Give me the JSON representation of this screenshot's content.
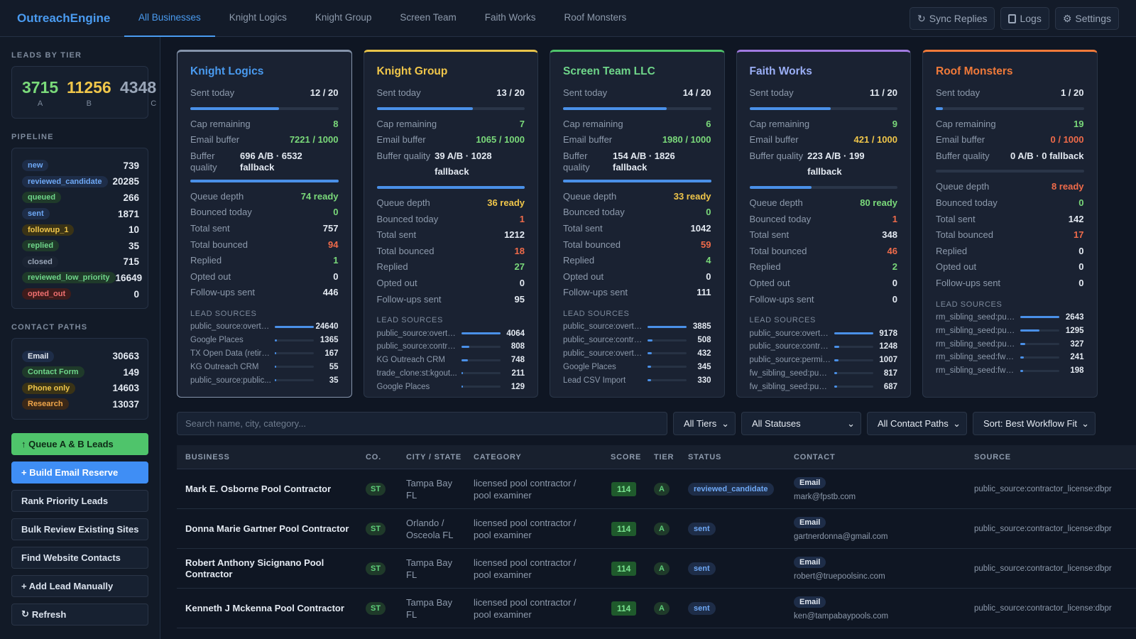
{
  "app": {
    "brand": "OutreachEngine",
    "tabs": [
      "All Businesses",
      "Knight Logics",
      "Knight Group",
      "Screen Team",
      "Faith Works",
      "Roof Monsters"
    ],
    "actions": {
      "sync": "Sync Replies",
      "logs": "Logs",
      "settings": "Settings"
    }
  },
  "sidebar": {
    "tiers_heading": "LEADS BY TIER",
    "tiers": [
      {
        "value": "3715",
        "label": "A",
        "color": "#7ad97a"
      },
      {
        "value": "11256",
        "label": "B",
        "color": "#f0c64a"
      },
      {
        "value": "4348",
        "label": "C",
        "color": "#9aa6b8"
      }
    ],
    "pipeline_heading": "PIPELINE",
    "pipeline": [
      {
        "label": "new",
        "value": "739",
        "bg": "#1e2d48",
        "fg": "#6ea8f5"
      },
      {
        "label": "reviewed_candidate",
        "value": "20285",
        "bg": "#1e2d48",
        "fg": "#6ea8f5"
      },
      {
        "label": "queued",
        "value": "266",
        "bg": "#1f3a2a",
        "fg": "#6fd68a"
      },
      {
        "label": "sent",
        "value": "1871",
        "bg": "#1e2d48",
        "fg": "#6ea8f5"
      },
      {
        "label": "followup_1",
        "value": "10",
        "bg": "#3a3316",
        "fg": "#f0c64a"
      },
      {
        "label": "replied",
        "value": "35",
        "bg": "#1f3a2a",
        "fg": "#6fd68a"
      },
      {
        "label": "closed",
        "value": "715",
        "bg": "#1b2433",
        "fg": "#9aa6b8"
      },
      {
        "label": "reviewed_low_priority",
        "value": "16649",
        "bg": "#1f3a2a",
        "fg": "#6fd68a"
      },
      {
        "label": "opted_out",
        "value": "0",
        "bg": "#3e1c1c",
        "fg": "#f07070"
      }
    ],
    "contact_heading": "CONTACT PATHS",
    "contact_paths": [
      {
        "label": "Email",
        "value": "30663",
        "bg": "#1e2d48",
        "fg": "#e4eaf2"
      },
      {
        "label": "Contact Form",
        "value": "149",
        "bg": "#1f3a2a",
        "fg": "#6fd68a"
      },
      {
        "label": "Phone only",
        "value": "14603",
        "bg": "#3a3316",
        "fg": "#f0c64a"
      },
      {
        "label": "Research",
        "value": "13037",
        "bg": "#3a2818",
        "fg": "#f0a64a"
      }
    ],
    "buttons": {
      "queue": "↑ Queue A & B Leads",
      "build": "+ Build Email Reserve",
      "rank": "Rank Priority Leads",
      "bulk": "Bulk Review Existing Sites",
      "find": "Find Website Contacts",
      "add": "+ Add Lead Manually",
      "refresh": "Refresh"
    }
  },
  "cards": [
    {
      "title": "Knight Logics",
      "accent": "#6a8fc8",
      "title_color": "#4a9bf0",
      "sent_label": "Sent today",
      "sent": "12 / 20",
      "sent_frac": 0.6,
      "cap_label": "Cap remaining",
      "cap": "8",
      "cap_color": "#7ad97a",
      "buffer_label": "Email buffer",
      "buffer": "7221 / 1000",
      "buffer_color": "#7ad97a",
      "bq_label": "Buffer quality",
      "bq": "696 A/B · 6532 fallback",
      "buffer_frac": 1.0,
      "queue_label": "Queue depth",
      "queue": "74 ready",
      "queue_color": "#7ad97a",
      "bounced_label": "Bounced today",
      "bounced": "0",
      "bounced_color": "#7ad97a",
      "total_sent_label": "Total sent",
      "total_sent": "757",
      "total_bounced_label": "Total bounced",
      "total_bounced": "94",
      "total_bounced_color": "#f06b4a",
      "replied_label": "Replied",
      "replied": "1",
      "replied_color": "#7ad97a",
      "opted_label": "Opted out",
      "opted": "0",
      "follow_label": "Follow-ups sent",
      "follow": "446",
      "ls_heading": "LEAD SOURCES",
      "sources": [
        {
          "name": "public_source:overtu...",
          "count": "24640",
          "frac": 1.0
        },
        {
          "name": "Google Places",
          "count": "1365",
          "frac": 0.055
        },
        {
          "name": "TX Open Data (retired)",
          "count": "167",
          "frac": 0.01
        },
        {
          "name": "KG Outreach CRM",
          "count": "55",
          "frac": 0.005
        },
        {
          "name": "public_source:public...",
          "count": "35",
          "frac": 0.003
        }
      ]
    },
    {
      "title": "Knight Group",
      "accent": "#e8c34a",
      "title_color": "#f0c64a",
      "sent_label": "Sent today",
      "sent": "13 / 20",
      "sent_frac": 0.65,
      "cap_label": "Cap remaining",
      "cap": "7",
      "cap_color": "#7ad97a",
      "buffer_label": "Email buffer",
      "buffer": "1065 / 1000",
      "buffer_color": "#7ad97a",
      "bq_label": "Buffer quality",
      "bq": "39 A/B · 1028 fallback",
      "buffer_frac": 1.0,
      "queue_label": "Queue depth",
      "queue": "36 ready",
      "queue_color": "#f0c64a",
      "bounced_label": "Bounced today",
      "bounced": "1",
      "bounced_color": "#f06b4a",
      "total_sent_label": "Total sent",
      "total_sent": "1212",
      "total_bounced_label": "Total bounced",
      "total_bounced": "18",
      "total_bounced_color": "#f06b4a",
      "replied_label": "Replied",
      "replied": "27",
      "replied_color": "#7ad97a",
      "opted_label": "Opted out",
      "opted": "0",
      "follow_label": "Follow-ups sent",
      "follow": "95",
      "ls_heading": "LEAD SOURCES",
      "sources": [
        {
          "name": "public_source:overtu...",
          "count": "4064",
          "frac": 1.0
        },
        {
          "name": "public_source:contra...",
          "count": "808",
          "frac": 0.2
        },
        {
          "name": "KG Outreach CRM",
          "count": "748",
          "frac": 0.18
        },
        {
          "name": "trade_clone:st:kgout...",
          "count": "211",
          "frac": 0.05
        },
        {
          "name": "Google Places",
          "count": "129",
          "frac": 0.03
        }
      ]
    },
    {
      "title": "Screen Team LLC",
      "accent": "#4fc46b",
      "title_color": "#6fd68a",
      "sent_label": "Sent today",
      "sent": "14 / 20",
      "sent_frac": 0.7,
      "cap_label": "Cap remaining",
      "cap": "6",
      "cap_color": "#7ad97a",
      "buffer_label": "Email buffer",
      "buffer": "1980 / 1000",
      "buffer_color": "#7ad97a",
      "bq_label": "Buffer quality",
      "bq": "154 A/B · 1826 fallback",
      "buffer_frac": 1.0,
      "queue_label": "Queue depth",
      "queue": "33 ready",
      "queue_color": "#f0c64a",
      "bounced_label": "Bounced today",
      "bounced": "0",
      "bounced_color": "#7ad97a",
      "total_sent_label": "Total sent",
      "total_sent": "1042",
      "total_bounced_label": "Total bounced",
      "total_bounced": "59",
      "total_bounced_color": "#f06b4a",
      "replied_label": "Replied",
      "replied": "4",
      "replied_color": "#7ad97a",
      "opted_label": "Opted out",
      "opted": "0",
      "follow_label": "Follow-ups sent",
      "follow": "111",
      "ls_heading": "LEAD SOURCES",
      "sources": [
        {
          "name": "public_source:overtu...",
          "count": "3885",
          "frac": 1.0
        },
        {
          "name": "public_source:contra...",
          "count": "508",
          "frac": 0.13
        },
        {
          "name": "public_source:overtu...",
          "count": "432",
          "frac": 0.11
        },
        {
          "name": "Google Places",
          "count": "345",
          "frac": 0.09
        },
        {
          "name": "Lead CSV Import",
          "count": "330",
          "frac": 0.085
        }
      ]
    },
    {
      "title": "Faith Works",
      "accent": "#a07ae0",
      "title_color": "#9aaef5",
      "sent_label": "Sent today",
      "sent": "11 / 20",
      "sent_frac": 0.55,
      "cap_label": "Cap remaining",
      "cap": "9",
      "cap_color": "#7ad97a",
      "buffer_label": "Email buffer",
      "buffer": "421 / 1000",
      "buffer_color": "#f0c64a",
      "bq_label": "Buffer quality",
      "bq": "223 A/B · 199 fallback",
      "buffer_frac": 0.42,
      "queue_label": "Queue depth",
      "queue": "80 ready",
      "queue_color": "#7ad97a",
      "bounced_label": "Bounced today",
      "bounced": "1",
      "bounced_color": "#f06b4a",
      "total_sent_label": "Total sent",
      "total_sent": "348",
      "total_bounced_label": "Total bounced",
      "total_bounced": "46",
      "total_bounced_color": "#f06b4a",
      "replied_label": "Replied",
      "replied": "2",
      "replied_color": "#7ad97a",
      "opted_label": "Opted out",
      "opted": "0",
      "follow_label": "Follow-ups sent",
      "follow": "0",
      "ls_heading": "LEAD SOURCES",
      "sources": [
        {
          "name": "public_source:overtu...",
          "count": "9178",
          "frac": 1.0
        },
        {
          "name": "public_source:contra...",
          "count": "1248",
          "frac": 0.14
        },
        {
          "name": "public_source:permit...",
          "count": "1007",
          "frac": 0.11
        },
        {
          "name": "fw_sibling_seed:publ...",
          "count": "817",
          "frac": 0.09
        },
        {
          "name": "fw_sibling_seed:publ...",
          "count": "687",
          "frac": 0.075
        }
      ]
    },
    {
      "title": "Roof Monsters",
      "accent": "#f07a3a",
      "title_color": "#f07a3a",
      "sent_label": "Sent today",
      "sent": "1 / 20",
      "sent_frac": 0.05,
      "cap_label": "Cap remaining",
      "cap": "19",
      "cap_color": "#7ad97a",
      "buffer_label": "Email buffer",
      "buffer": "0 / 1000",
      "buffer_color": "#f06b4a",
      "bq_label": "Buffer quality",
      "bq": "0 A/B · 0 fallback",
      "buffer_frac": 0.0,
      "queue_label": "Queue depth",
      "queue": "8 ready",
      "queue_color": "#f06b4a",
      "bounced_label": "Bounced today",
      "bounced": "0",
      "bounced_color": "#7ad97a",
      "total_sent_label": "Total sent",
      "total_sent": "142",
      "total_bounced_label": "Total bounced",
      "total_bounced": "17",
      "total_bounced_color": "#f06b4a",
      "replied_label": "Replied",
      "replied": "0",
      "replied_color": "#e4eaf2",
      "opted_label": "Opted out",
      "opted": "0",
      "follow_label": "Follow-ups sent",
      "follow": "0",
      "ls_heading": "LEAD SOURCES",
      "sources": [
        {
          "name": "rm_sibling_seed:publ...",
          "count": "2643",
          "frac": 1.0
        },
        {
          "name": "rm_sibling_seed:publ...",
          "count": "1295",
          "frac": 0.49
        },
        {
          "name": "rm_sibling_seed:publ...",
          "count": "327",
          "frac": 0.12
        },
        {
          "name": "rm_sibling_seed:fw_s...",
          "count": "241",
          "frac": 0.09
        },
        {
          "name": "rm_sibling_seed:fw_s...",
          "count": "198",
          "frac": 0.075
        }
      ]
    }
  ],
  "filters": {
    "search_placeholder": "Search name, city, category...",
    "tiers": "All Tiers",
    "statuses": "All Statuses",
    "contact_paths": "All Contact Paths",
    "sort": "Sort: Best Workflow Fit"
  },
  "table": {
    "headers": [
      "BUSINESS",
      "CO.",
      "CITY / STATE",
      "CATEGORY",
      "SCORE",
      "TIER",
      "STATUS",
      "CONTACT",
      "SOURCE"
    ],
    "rows": [
      {
        "business": "Mark E. Osborne Pool Contractor",
        "co": "ST",
        "city": "Tampa Bay",
        "state": "FL",
        "cat1": "licensed pool contractor /",
        "cat2": "pool examiner",
        "score": "114",
        "tier": "A",
        "status": "reviewed_candidate",
        "contact_type": "Email",
        "email": "mark@fpstb.com",
        "source": "public_source:contractor_license:dbpr"
      },
      {
        "business": "Donna Marie Gartner Pool Contractor",
        "co": "ST",
        "city": "Orlando /",
        "state": "Osceola FL",
        "cat1": "licensed pool contractor /",
        "cat2": "pool examiner",
        "score": "114",
        "tier": "A",
        "status": "sent",
        "contact_type": "Email",
        "email": "gartnerdonna@gmail.com",
        "source": "public_source:contractor_license:dbpr"
      },
      {
        "business": "Robert Anthony Sicignano Pool Contractor",
        "co": "ST",
        "city": "Tampa Bay",
        "state": "FL",
        "cat1": "licensed pool contractor /",
        "cat2": "pool examiner",
        "score": "114",
        "tier": "A",
        "status": "sent",
        "contact_type": "Email",
        "email": "robert@truepoolsinc.com",
        "source": "public_source:contractor_license:dbpr"
      },
      {
        "business": "Kenneth J Mckenna Pool Contractor",
        "co": "ST",
        "city": "Tampa Bay",
        "state": "FL",
        "cat1": "licensed pool contractor /",
        "cat2": "pool examiner",
        "score": "114",
        "tier": "A",
        "status": "sent",
        "contact_type": "Email",
        "email": "ken@tampabaypools.com",
        "source": "public_source:contractor_license:dbpr"
      }
    ]
  }
}
